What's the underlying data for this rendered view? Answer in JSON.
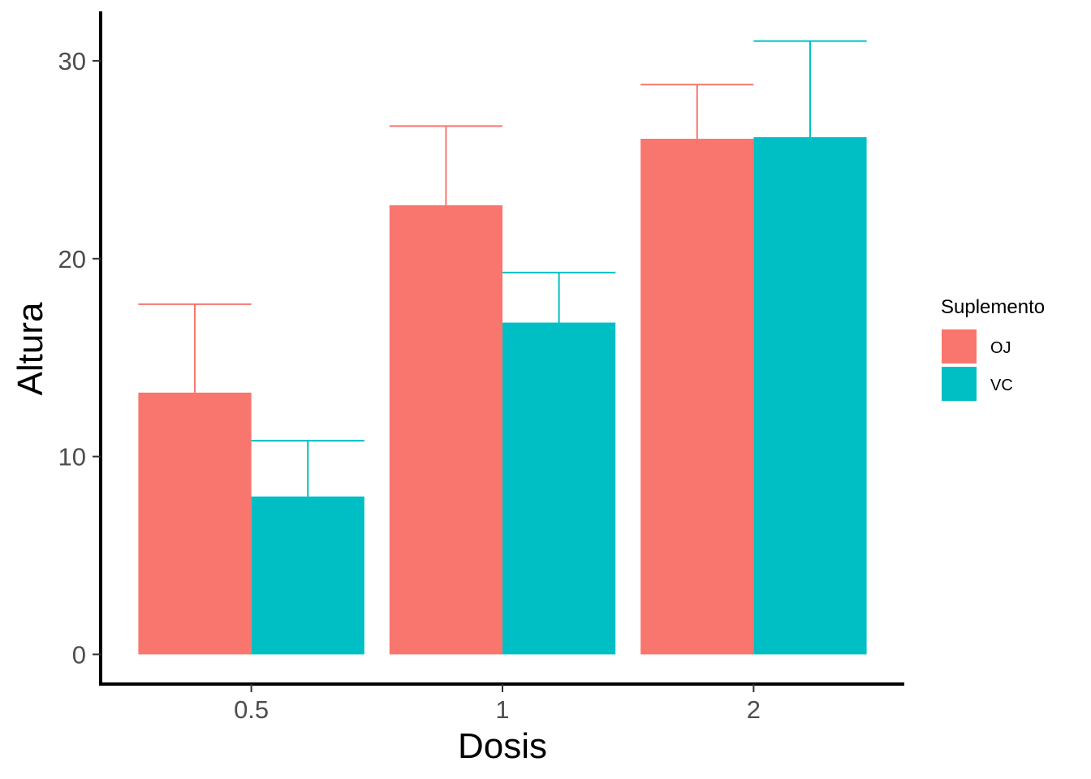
{
  "chart_data": {
    "type": "bar",
    "categories": [
      "0.5",
      "1",
      "2"
    ],
    "series": [
      {
        "name": "OJ",
        "color": "#F8766D",
        "values": [
          13.23,
          22.7,
          26.06
        ],
        "error_upper": [
          17.7,
          26.7,
          28.8
        ]
      },
      {
        "name": "VC",
        "color": "#00BFC4",
        "values": [
          7.98,
          16.77,
          26.14
        ],
        "error_upper": [
          10.8,
          19.3,
          31.0
        ]
      }
    ],
    "title": "",
    "xlabel": "Dosis",
    "ylabel": "Altura",
    "ylim": [
      -1.5,
      32.5
    ],
    "yticks": [
      0,
      10,
      20,
      30
    ],
    "grid": false,
    "legend_title": "Suplemento",
    "legend_position": "right"
  }
}
